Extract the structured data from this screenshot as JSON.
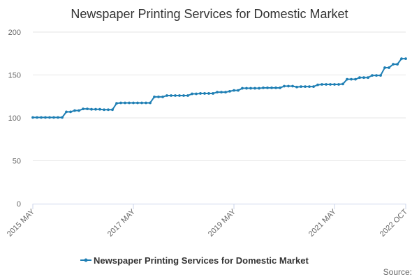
{
  "chart_data": {
    "type": "line",
    "title": "Newspaper Printing Services for Domestic Market",
    "xlabel": "",
    "ylabel": "",
    "ylim": [
      0,
      200
    ],
    "yticks": [
      0,
      50,
      100,
      150,
      200
    ],
    "xlim": [
      "2015-05",
      "2022-10"
    ],
    "xticks": [
      {
        "x": "2015-05",
        "label": "2015 MAY"
      },
      {
        "x": "2017-05",
        "label": "2017 MAY"
      },
      {
        "x": "2019-05",
        "label": "2019 MAY"
      },
      {
        "x": "2021-05",
        "label": "2021 MAY"
      },
      {
        "x": "2022-10",
        "label": "2022 OCT"
      }
    ],
    "grid": true,
    "legend_position": "bottom",
    "colors": {
      "series": "#1f7fb4",
      "grid": "#e6e6e6",
      "axis": "#ccd6eb"
    },
    "series": [
      {
        "name": "Newspaper Printing Services for Domestic Market",
        "x": [
          "2015-05",
          "2015-06",
          "2015-07",
          "2015-08",
          "2015-09",
          "2015-10",
          "2015-11",
          "2015-12",
          "2016-01",
          "2016-02",
          "2016-03",
          "2016-04",
          "2016-05",
          "2016-06",
          "2016-07",
          "2016-08",
          "2016-09",
          "2016-10",
          "2016-11",
          "2016-12",
          "2017-01",
          "2017-02",
          "2017-03",
          "2017-04",
          "2017-05",
          "2017-06",
          "2017-07",
          "2017-08",
          "2017-09",
          "2017-10",
          "2017-11",
          "2017-12",
          "2018-01",
          "2018-02",
          "2018-03",
          "2018-04",
          "2018-05",
          "2018-06",
          "2018-07",
          "2018-08",
          "2018-09",
          "2018-10",
          "2018-11",
          "2018-12",
          "2019-01",
          "2019-02",
          "2019-03",
          "2019-04",
          "2019-05",
          "2019-06",
          "2019-07",
          "2019-08",
          "2019-09",
          "2019-10",
          "2019-11",
          "2019-12",
          "2020-01",
          "2020-02",
          "2020-03",
          "2020-04",
          "2020-05",
          "2020-06",
          "2020-07",
          "2020-08",
          "2020-09",
          "2020-10",
          "2020-11",
          "2020-12",
          "2021-01",
          "2021-02",
          "2021-03",
          "2021-04",
          "2021-05",
          "2021-06",
          "2021-07",
          "2021-08",
          "2021-09",
          "2021-10",
          "2021-11",
          "2021-12",
          "2022-01",
          "2022-02",
          "2022-03",
          "2022-04",
          "2022-05",
          "2022-06",
          "2022-07",
          "2022-08",
          "2022-09",
          "2022-10"
        ],
        "values": [
          100.5,
          100.5,
          100.5,
          100.5,
          100.5,
          100.5,
          100.5,
          100.5,
          107,
          107,
          108.5,
          108.5,
          110.5,
          110.5,
          110,
          110,
          110,
          109.5,
          109.5,
          109.5,
          117,
          117.5,
          117.5,
          117.5,
          117.5,
          117.5,
          117.5,
          117.5,
          117.5,
          124.5,
          124.5,
          124.5,
          126,
          126,
          126,
          126,
          126,
          126,
          128,
          128,
          128.5,
          128.5,
          128.5,
          128.5,
          130,
          130,
          130,
          131,
          132,
          132,
          134.5,
          134.5,
          134.5,
          134.5,
          134.5,
          135,
          135,
          135,
          135,
          135,
          137,
          137,
          137,
          136,
          136.5,
          136.5,
          136.5,
          136.5,
          138.5,
          139,
          139,
          139,
          139,
          139,
          139.5,
          145,
          145,
          145,
          147,
          147,
          147,
          149.5,
          149.5,
          149.5,
          158.5,
          158.5,
          162.5,
          162.5,
          169,
          169
        ]
      }
    ]
  },
  "legend": {
    "label": "Newspaper Printing Services for Domestic Market"
  },
  "source": {
    "label": "Source:"
  }
}
